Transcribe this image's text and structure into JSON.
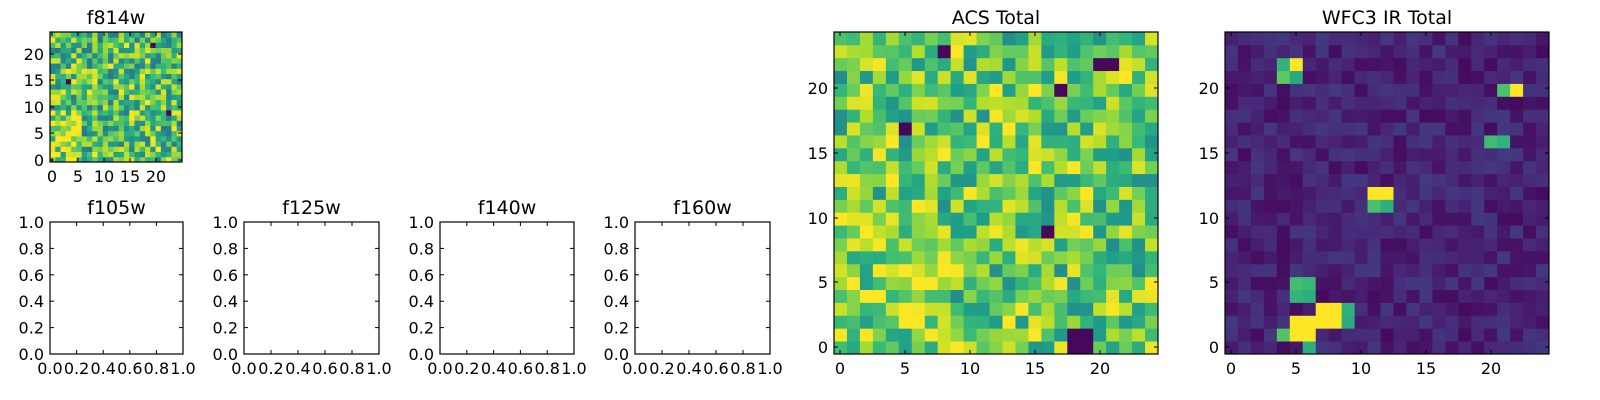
{
  "colormap": [
    "#440154",
    "#482777",
    "#3e4989",
    "#31688e",
    "#26828e",
    "#1f9e89",
    "#35b779",
    "#6ece58",
    "#b5de2b",
    "#fde725"
  ],
  "chart_data": [
    {
      "id": "f814w",
      "type": "heatmap",
      "title": "f814w",
      "grid_size": 25,
      "xlim": [
        -0.5,
        24.5
      ],
      "ylim": [
        -0.5,
        24.5
      ],
      "xticks": [
        "0",
        "5",
        "10",
        "15",
        "20"
      ],
      "yticks": [
        "0",
        "5",
        "10",
        "15",
        "20"
      ],
      "value_range": [
        0,
        1
      ],
      "seed": 814,
      "base": 0.7,
      "spread": 0.3,
      "hot_pixels": [],
      "dark_pixels": [
        {
          "x": 22,
          "y": 9
        },
        {
          "x": 3,
          "y": 15
        },
        {
          "x": 19,
          "y": 22
        }
      ]
    },
    {
      "id": "f105w",
      "type": "empty",
      "title": "f105w",
      "xticks": [
        "0.0",
        "0.2",
        "0.4",
        "0.6",
        "0.8",
        "1.0"
      ],
      "yticks": [
        "0.0",
        "0.2",
        "0.4",
        "0.6",
        "0.8",
        "1.0"
      ]
    },
    {
      "id": "f125w",
      "type": "empty",
      "title": "f125w",
      "xticks": [
        "0.0",
        "0.2",
        "0.4",
        "0.6",
        "0.8",
        "1.0"
      ],
      "yticks": [
        "0.0",
        "0.2",
        "0.4",
        "0.6",
        "0.8",
        "1.0"
      ]
    },
    {
      "id": "f140w",
      "type": "empty",
      "title": "f140w",
      "xticks": [
        "0.0",
        "0.2",
        "0.4",
        "0.6",
        "0.8",
        "1.0"
      ],
      "yticks": [
        "0.0",
        "0.2",
        "0.4",
        "0.6",
        "0.8",
        "1.0"
      ]
    },
    {
      "id": "f160w",
      "type": "empty",
      "title": "f160w",
      "xticks": [
        "0.0",
        "0.2",
        "0.4",
        "0.6",
        "0.8",
        "1.0"
      ],
      "yticks": [
        "0.0",
        "0.2",
        "0.4",
        "0.6",
        "0.8",
        "1.0"
      ]
    },
    {
      "id": "acs_total",
      "type": "heatmap",
      "title": "ACS Total",
      "grid_size": 25,
      "xlim": [
        -0.5,
        24.5
      ],
      "ylim": [
        -0.5,
        24.5
      ],
      "xticks": [
        "0",
        "5",
        "10",
        "15",
        "20"
      ],
      "yticks": [
        "0",
        "5",
        "10",
        "15",
        "20"
      ],
      "value_range": [
        0,
        1
      ],
      "seed": 42,
      "base": 0.74,
      "spread": 0.26,
      "hot_pixels": [
        {
          "x": 19,
          "y": 9
        },
        {
          "x": 4,
          "y": 16
        },
        {
          "x": 24,
          "y": 5
        },
        {
          "x": 15,
          "y": 20
        },
        {
          "x": 13,
          "y": 2
        }
      ],
      "dark_pixels": [
        {
          "x": 8,
          "y": 23
        },
        {
          "x": 5,
          "y": 17
        },
        {
          "x": 16,
          "y": 9
        },
        {
          "x": 17,
          "y": 20
        },
        {
          "x": 20,
          "y": 22
        },
        {
          "x": 21,
          "y": 22
        },
        {
          "x": 18,
          "y": 0
        },
        {
          "x": 19,
          "y": 0
        },
        {
          "x": 18,
          "y": 1
        },
        {
          "x": 19,
          "y": 1
        }
      ]
    },
    {
      "id": "wfc3_ir_total",
      "type": "heatmap",
      "title": "WFC3 IR Total",
      "grid_size": 25,
      "xlim": [
        -0.5,
        24.5
      ],
      "ylim": [
        -0.5,
        24.5
      ],
      "xticks": [
        "0",
        "5",
        "10",
        "15",
        "20"
      ],
      "yticks": [
        "0",
        "5",
        "10",
        "15",
        "20"
      ],
      "value_range": [
        0,
        1
      ],
      "seed": 160,
      "base": 0.1,
      "spread": 0.07,
      "hot_pixels": [
        {
          "x": 5,
          "y": 22
        },
        {
          "x": 22,
          "y": 20
        },
        {
          "x": 11,
          "y": 12
        },
        {
          "x": 12,
          "y": 12
        },
        {
          "x": 5,
          "y": 2
        },
        {
          "x": 6,
          "y": 2
        },
        {
          "x": 7,
          "y": 2
        },
        {
          "x": 8,
          "y": 2
        },
        {
          "x": 5,
          "y": 1
        },
        {
          "x": 6,
          "y": 1
        },
        {
          "x": 7,
          "y": 3
        },
        {
          "x": 8,
          "y": 3
        }
      ],
      "warm_pixels": [
        {
          "x": 4,
          "y": 22
        },
        {
          "x": 4,
          "y": 21
        },
        {
          "x": 5,
          "y": 21
        },
        {
          "x": 21,
          "y": 20
        },
        {
          "x": 20,
          "y": 16
        },
        {
          "x": 21,
          "y": 16
        },
        {
          "x": 11,
          "y": 11
        },
        {
          "x": 12,
          "y": 11
        },
        {
          "x": 5,
          "y": 5
        },
        {
          "x": 6,
          "y": 5
        },
        {
          "x": 5,
          "y": 4
        },
        {
          "x": 6,
          "y": 4
        },
        {
          "x": 4,
          "y": 1
        },
        {
          "x": 9,
          "y": 2
        },
        {
          "x": 9,
          "y": 3
        },
        {
          "x": 6,
          "y": 0
        }
      ],
      "dark_pixels": []
    }
  ]
}
